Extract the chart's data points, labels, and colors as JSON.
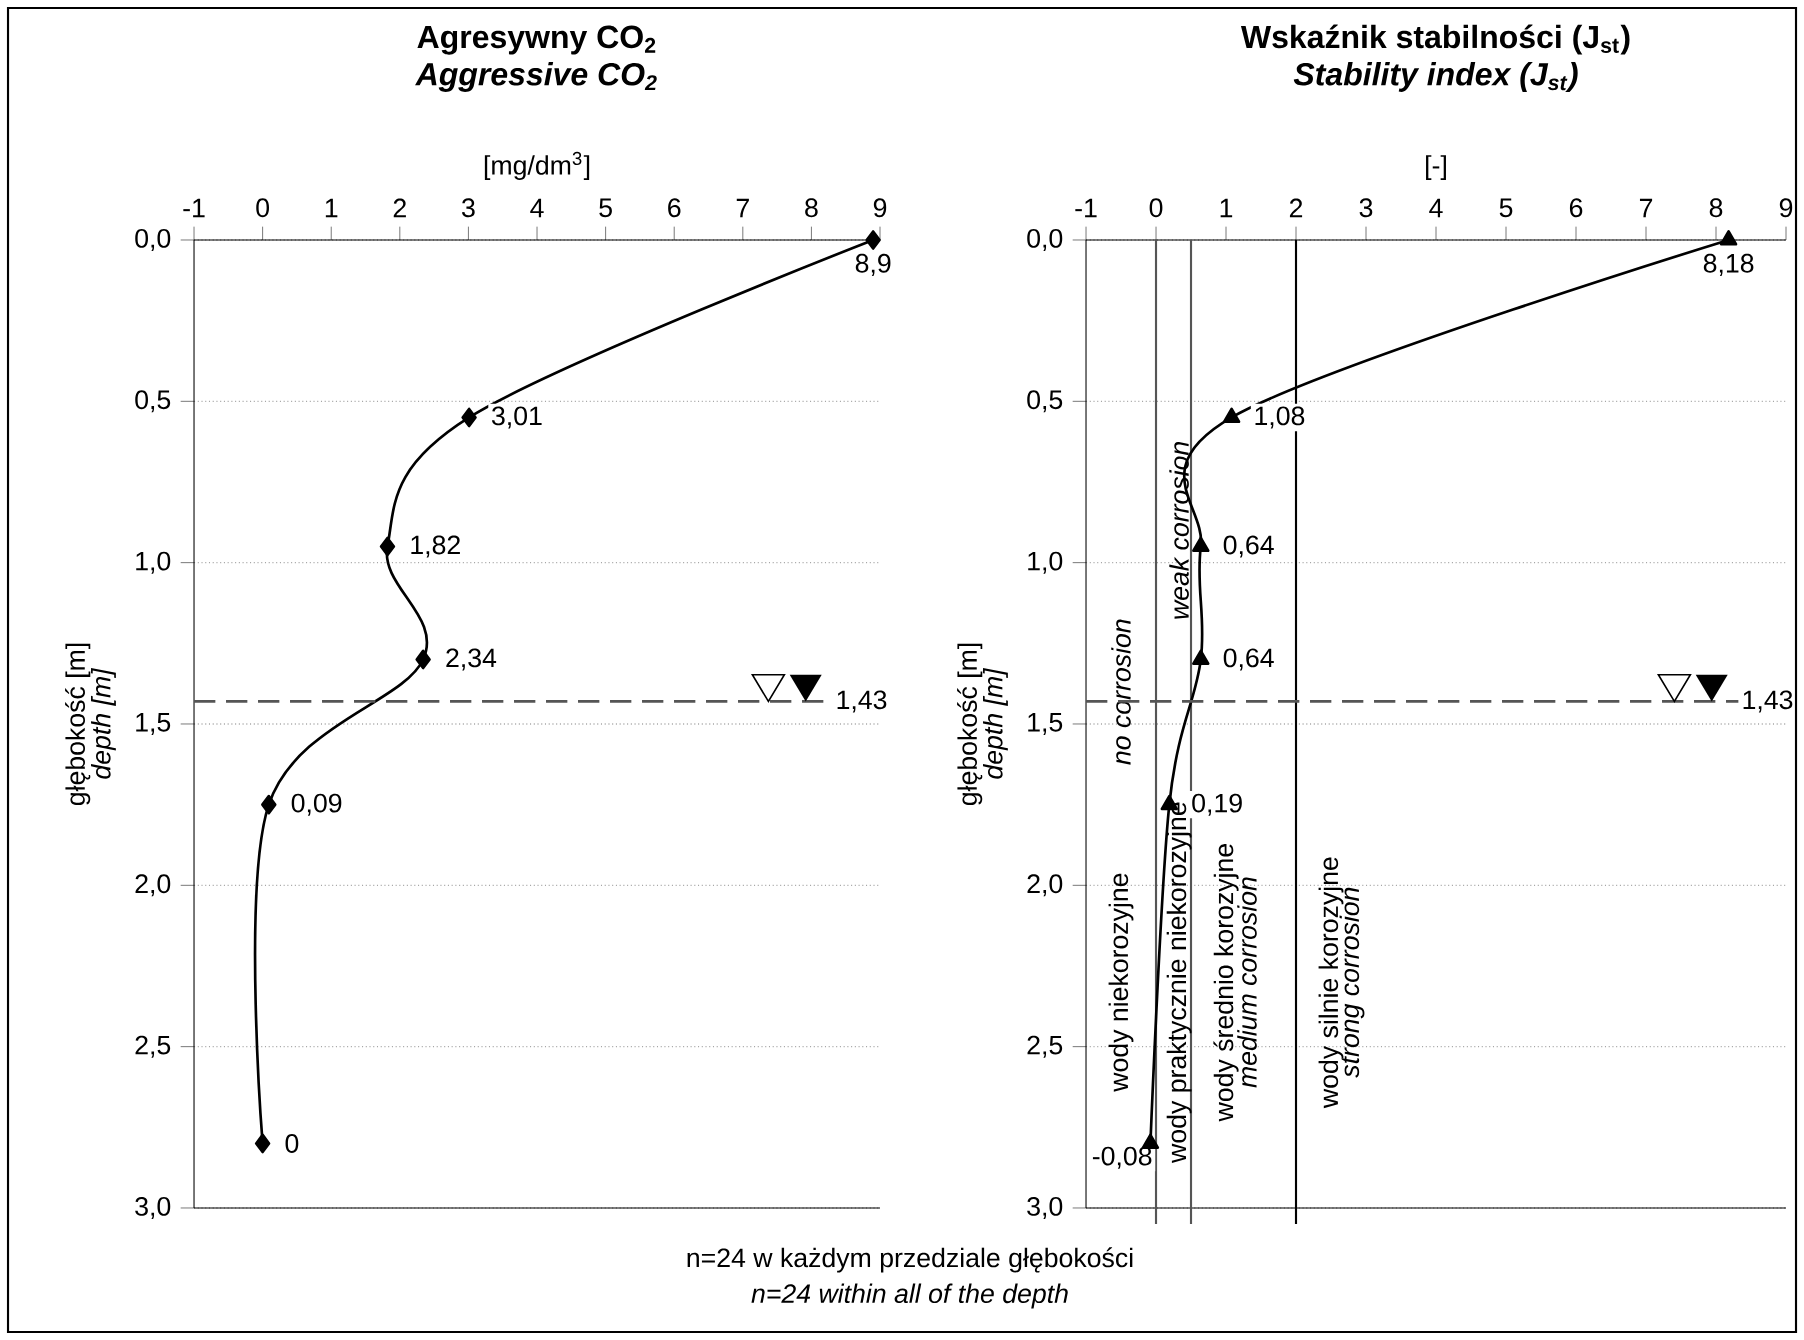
{
  "chart_data": [
    {
      "type": "line",
      "orientation": "horizontal",
      "title": "Agresywny CO$_{2}$",
      "subtitle": "Aggressive CO$_{2}$",
      "xlabel": "[mg/dm$^{3}$]",
      "ylabel": "głębokość [m]",
      "annotations": [
        "depth [m]",
        "n=24 w każdym przedziale głębokości",
        "n=24 within all of the depth"
      ],
      "xlim": [
        -1,
        9
      ],
      "xticks": [
        -1,
        0,
        1,
        2,
        3,
        4,
        5,
        6,
        7,
        8,
        9
      ],
      "ylim": [
        3,
        0
      ],
      "yticks": [
        {
          "value": 0,
          "label": "0,0"
        },
        {
          "value": 0.5,
          "label": "0,5"
        },
        {
          "value": 1,
          "label": "1,0"
        },
        {
          "value": 1.5,
          "label": "1,5"
        },
        {
          "value": 2,
          "label": "2,0"
        },
        {
          "value": 2.5,
          "label": "2,5"
        },
        {
          "value": 3,
          "label": "3,0"
        }
      ],
      "grid": "y",
      "marker": "diamond",
      "line_style": "solid",
      "series": [
        {
          "color": "#000000",
          "x": [
            0,
            0.55,
            0.95,
            1.3,
            1.75,
            2.8
          ],
          "values": [
            8.9,
            3.01,
            1.82,
            2.34,
            0.09,
            0
          ],
          "value_labels": [
            "8,9",
            "3,01",
            "1,82",
            "2,34",
            "0,09",
            "0"
          ]
        }
      ],
      "ref_lines": [
        {
          "axis": "y",
          "value": 1.43,
          "label": "1,43",
          "line_style": "dashed",
          "color": "#555555"
        }
      ]
    },
    {
      "type": "line",
      "orientation": "horizontal",
      "title": "Wskaźnik stabilności (J$_{st}$)",
      "subtitle": "Stability index (J$_{st}$)",
      "xlabel": "[-]",
      "ylabel": "głębokość [m]",
      "annotations": [
        "depth [m]",
        "wody niekorozyjne",
        "no corrosion",
        "wody praktycznie niekorozyjne",
        "weak corrosion",
        "wody średnio korozyjne",
        "medium corrosion",
        "wody silnie korozyjne",
        "strong corrosion"
      ],
      "xlim": [
        -1,
        9
      ],
      "xticks": [
        -1,
        0,
        1,
        2,
        3,
        4,
        5,
        6,
        7,
        8,
        9
      ],
      "ylim": [
        3,
        0
      ],
      "yticks": [
        {
          "value": 0,
          "label": "0,0"
        },
        {
          "value": 0.5,
          "label": "0,5"
        },
        {
          "value": 1,
          "label": "1,0"
        },
        {
          "value": 1.5,
          "label": "1,5"
        },
        {
          "value": 2,
          "label": "2,0"
        },
        {
          "value": 2.5,
          "label": "2,5"
        },
        {
          "value": 3,
          "label": "3,0"
        }
      ],
      "grid": "y",
      "marker": "triangle",
      "line_style": "solid",
      "series": [
        {
          "color": "#000000",
          "x": [
            0,
            0.55,
            0.95,
            1.3,
            1.75,
            2.8
          ],
          "values": [
            8.18,
            1.08,
            0.64,
            0.64,
            0.19,
            -0.08
          ],
          "value_labels": [
            "8,18",
            "1,08",
            "0,64",
            "0,64",
            "0,19",
            "-0,08"
          ]
        }
      ],
      "ref_lines": [
        {
          "axis": "y",
          "value": 1.43,
          "label": "1,43",
          "line_style": "dashed",
          "color": "#555555"
        },
        {
          "axis": "x",
          "value": 0,
          "color": "#555555"
        },
        {
          "axis": "x",
          "value": 0.5,
          "color": "#555555"
        },
        {
          "axis": "x",
          "value": 2,
          "color": "#000000"
        }
      ]
    }
  ]
}
